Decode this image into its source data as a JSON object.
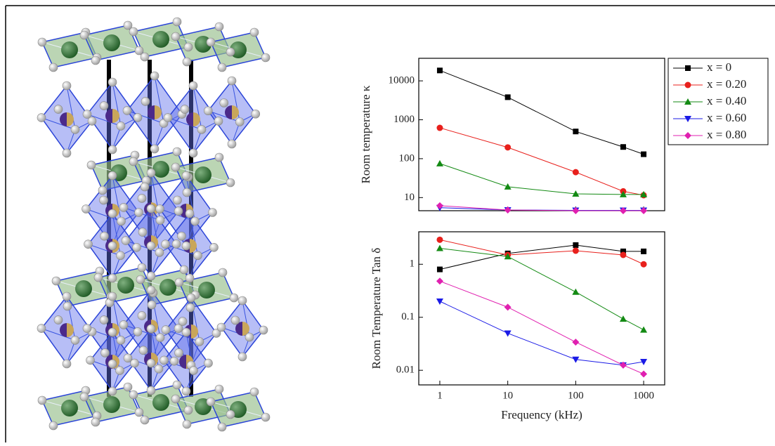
{
  "chart_data": [
    {
      "type": "line",
      "ylabel": "Room temperature κ",
      "x": [
        1,
        10,
        100,
        500,
        1000
      ],
      "xlim": [
        0.49,
        2040
      ],
      "xticks": [
        1,
        10,
        100,
        1000
      ],
      "log_x": true,
      "ylim": [
        4.6,
        38000
      ],
      "yticks": [
        10,
        100,
        1000,
        10000
      ],
      "log_y": true,
      "legend": "outside-right",
      "series": [
        {
          "name": "x = 0",
          "color": "#000000",
          "marker": "square",
          "values": [
            18500,
            3800,
            500,
            200,
            130
          ]
        },
        {
          "name": "x = 0.20",
          "color": "#e8201c",
          "marker": "circle",
          "values": [
            620,
            195,
            45,
            14.5,
            11.5
          ]
        },
        {
          "name": "x = 0.40",
          "color": "#138a13",
          "marker": "triangle-up",
          "values": [
            75,
            19,
            12.5,
            12,
            12
          ]
        },
        {
          "name": "x = 0.60",
          "color": "#1a1ae6",
          "marker": "triangle-down",
          "values": [
            5.5,
            4.8,
            4.7,
            4.7,
            4.7
          ]
        },
        {
          "name": "x = 0.80",
          "color": "#e020b0",
          "marker": "diamond",
          "values": [
            6.2,
            4.8,
            4.6,
            4.6,
            4.6
          ]
        }
      ]
    },
    {
      "type": "line",
      "ylabel": "Room Temperature Tan δ",
      "xlabel": "Frequency (kHz)",
      "x": [
        1,
        10,
        100,
        500,
        1000
      ],
      "xlim": [
        0.49,
        2040
      ],
      "xticks": [
        1,
        10,
        100,
        1000
      ],
      "log_x": true,
      "ylim": [
        0.0053,
        4.1
      ],
      "yticks": [
        0.01,
        0.1,
        1
      ],
      "log_y": true,
      "series": [
        {
          "color": "#000000",
          "marker": "square",
          "values": [
            0.8,
            1.6,
            2.3,
            1.75,
            1.75
          ]
        },
        {
          "color": "#e8201c",
          "marker": "circle",
          "values": [
            2.9,
            1.5,
            1.8,
            1.5,
            1.0
          ]
        },
        {
          "color": "#138a13",
          "marker": "triangle-up",
          "values": [
            2.0,
            1.4,
            0.3,
            0.093,
            0.058
          ]
        },
        {
          "color": "#1a1ae6",
          "marker": "triangle-down",
          "values": [
            0.2,
            0.05,
            0.016,
            0.0125,
            0.0145
          ]
        },
        {
          "color": "#e020b0",
          "marker": "diamond",
          "values": [
            0.48,
            0.155,
            0.034,
            0.0125,
            0.0085
          ]
        }
      ]
    }
  ]
}
